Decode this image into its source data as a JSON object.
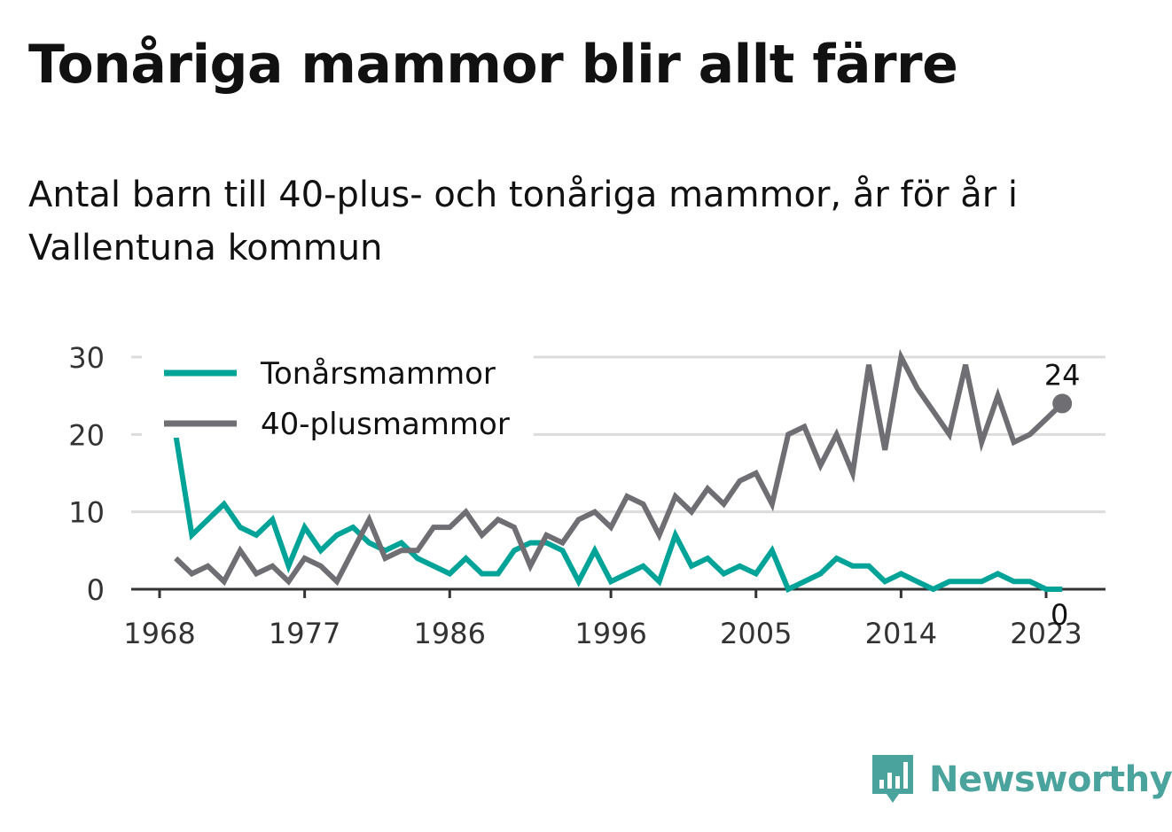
{
  "title": "Tonåriga mammor blir allt färre",
  "subtitle": "Antal barn till 40-plus- och tonåriga mammor, år för år i Vallentuna kommun",
  "logo": {
    "name": "Newsworthy",
    "icon": "newsworthy-bar-chart-icon",
    "color": "#4aa39c"
  },
  "chart_data": {
    "type": "line",
    "title": "Tonåriga mammor blir allt färre",
    "subtitle": "Antal barn till 40-plus- och tonåriga mammor, år för år i Vallentuna kommun",
    "xlabel": "",
    "ylabel": "",
    "xlim": [
      1968,
      2025
    ],
    "ylim": [
      0,
      30
    ],
    "x_ticks": [
      1968,
      1977,
      1986,
      1996,
      2005,
      2014,
      2023
    ],
    "y_ticks": [
      0,
      10,
      20,
      30
    ],
    "grid": true,
    "legend_position": "top-left",
    "x": [
      1969,
      1970,
      1971,
      1972,
      1973,
      1974,
      1975,
      1976,
      1977,
      1978,
      1979,
      1980,
      1981,
      1982,
      1983,
      1984,
      1985,
      1986,
      1987,
      1988,
      1989,
      1990,
      1991,
      1992,
      1993,
      1994,
      1995,
      1996,
      1997,
      1998,
      1999,
      2000,
      2001,
      2002,
      2003,
      2004,
      2005,
      2006,
      2007,
      2008,
      2009,
      2010,
      2011,
      2012,
      2013,
      2014,
      2015,
      2016,
      2017,
      2018,
      2019,
      2020,
      2021,
      2022,
      2023,
      2024
    ],
    "series": [
      {
        "name": "Tonårsmammor",
        "color": "#00a398",
        "end_label": "0",
        "values": [
          20,
          7,
          9,
          11,
          8,
          7,
          9,
          3,
          8,
          5,
          7,
          8,
          6,
          5,
          6,
          4,
          3,
          2,
          4,
          2,
          2,
          5,
          6,
          6,
          5,
          1,
          5,
          1,
          2,
          3,
          1,
          7,
          3,
          4,
          2,
          3,
          2,
          5,
          0,
          1,
          2,
          4,
          3,
          3,
          1,
          2,
          1,
          0,
          1,
          1,
          1,
          2,
          1,
          1,
          0,
          0
        ]
      },
      {
        "name": "40-plusmammor",
        "color": "#6e6e73",
        "end_label": "24",
        "values": [
          4,
          2,
          3,
          1,
          5,
          2,
          3,
          1,
          4,
          3,
          1,
          5,
          9,
          4,
          5,
          5,
          8,
          8,
          10,
          7,
          9,
          8,
          3,
          7,
          6,
          9,
          10,
          8,
          12,
          11,
          7,
          12,
          10,
          13,
          11,
          14,
          15,
          11,
          20,
          21,
          16,
          20,
          15,
          29,
          18,
          30,
          26,
          23,
          20,
          29,
          19,
          25,
          19,
          20,
          22,
          24
        ]
      }
    ]
  }
}
